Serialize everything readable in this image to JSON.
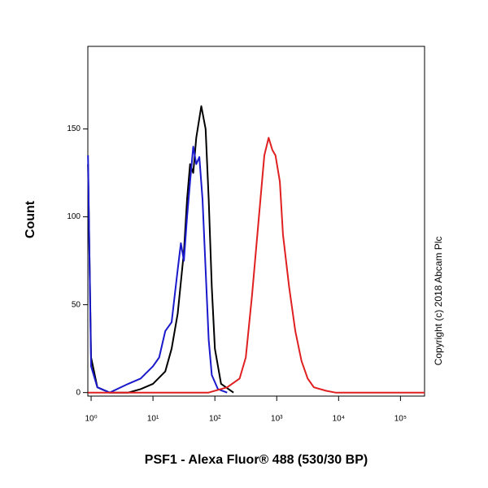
{
  "chart_data": {
    "type": "line",
    "x_label": "PSF1 - Alexa Fluor® 488 (530/30 BP)",
    "y_label": "Count",
    "annotation": "Copyright (c) 2018 Abcam Plc",
    "log_x": true,
    "xlim": [
      0.885,
      245000
    ],
    "ylim": [
      -2,
      197
    ],
    "xticks": [
      {
        "value": 1,
        "label": "10⁰"
      },
      {
        "value": 10,
        "label": "10¹"
      },
      {
        "value": 100,
        "label": "10²"
      },
      {
        "value": 1000,
        "label": "10³"
      },
      {
        "value": 10000,
        "label": "10⁴"
      },
      {
        "value": 100000,
        "label": "10⁵"
      }
    ],
    "yticks": [
      0,
      50,
      100,
      150
    ],
    "series": [
      {
        "color": "#000000",
        "x": [
          0.89,
          1,
          1.26,
          2,
          3.98,
          6.31,
          10,
          15.8,
          20,
          25.1,
          31.6,
          35.5,
          39.8,
          44.7,
          50.1,
          60.3,
          70.8,
          79.4,
          89.1,
          100,
          126,
          200
        ],
        "values": [
          130,
          20,
          3,
          0,
          0,
          2,
          5,
          12,
          25,
          45,
          80,
          110,
          130,
          125,
          145,
          163,
          150,
          110,
          60,
          25,
          5,
          0
        ]
      },
      {
        "color": "#1a1acc",
        "x": [
          0.89,
          1,
          1.26,
          2,
          3.98,
          6.31,
          10,
          12.6,
          15.8,
          20,
          25.1,
          28.2,
          31.6,
          35.5,
          39.8,
          44.7,
          50.1,
          56.2,
          63.1,
          70.8,
          79.4,
          89.1,
          112,
          158
        ],
        "values": [
          135,
          15,
          3,
          0,
          5,
          8,
          15,
          20,
          35,
          40,
          70,
          85,
          75,
          100,
          120,
          140,
          130,
          134,
          110,
          70,
          30,
          10,
          2,
          0
        ]
      },
      {
        "color": "#e02020",
        "x": [
          0.89,
          79,
          158,
          251,
          316,
          398,
          501,
          631,
          741,
          851,
          955,
          1122,
          1259,
          1585,
          1995,
          2512,
          3162,
          3981,
          6310,
          8913,
          245000
        ],
        "values": [
          0,
          0,
          3,
          8,
          20,
          55,
          95,
          135,
          145,
          138,
          135,
          120,
          90,
          60,
          35,
          18,
          8,
          3,
          1,
          0,
          0
        ]
      }
    ]
  }
}
